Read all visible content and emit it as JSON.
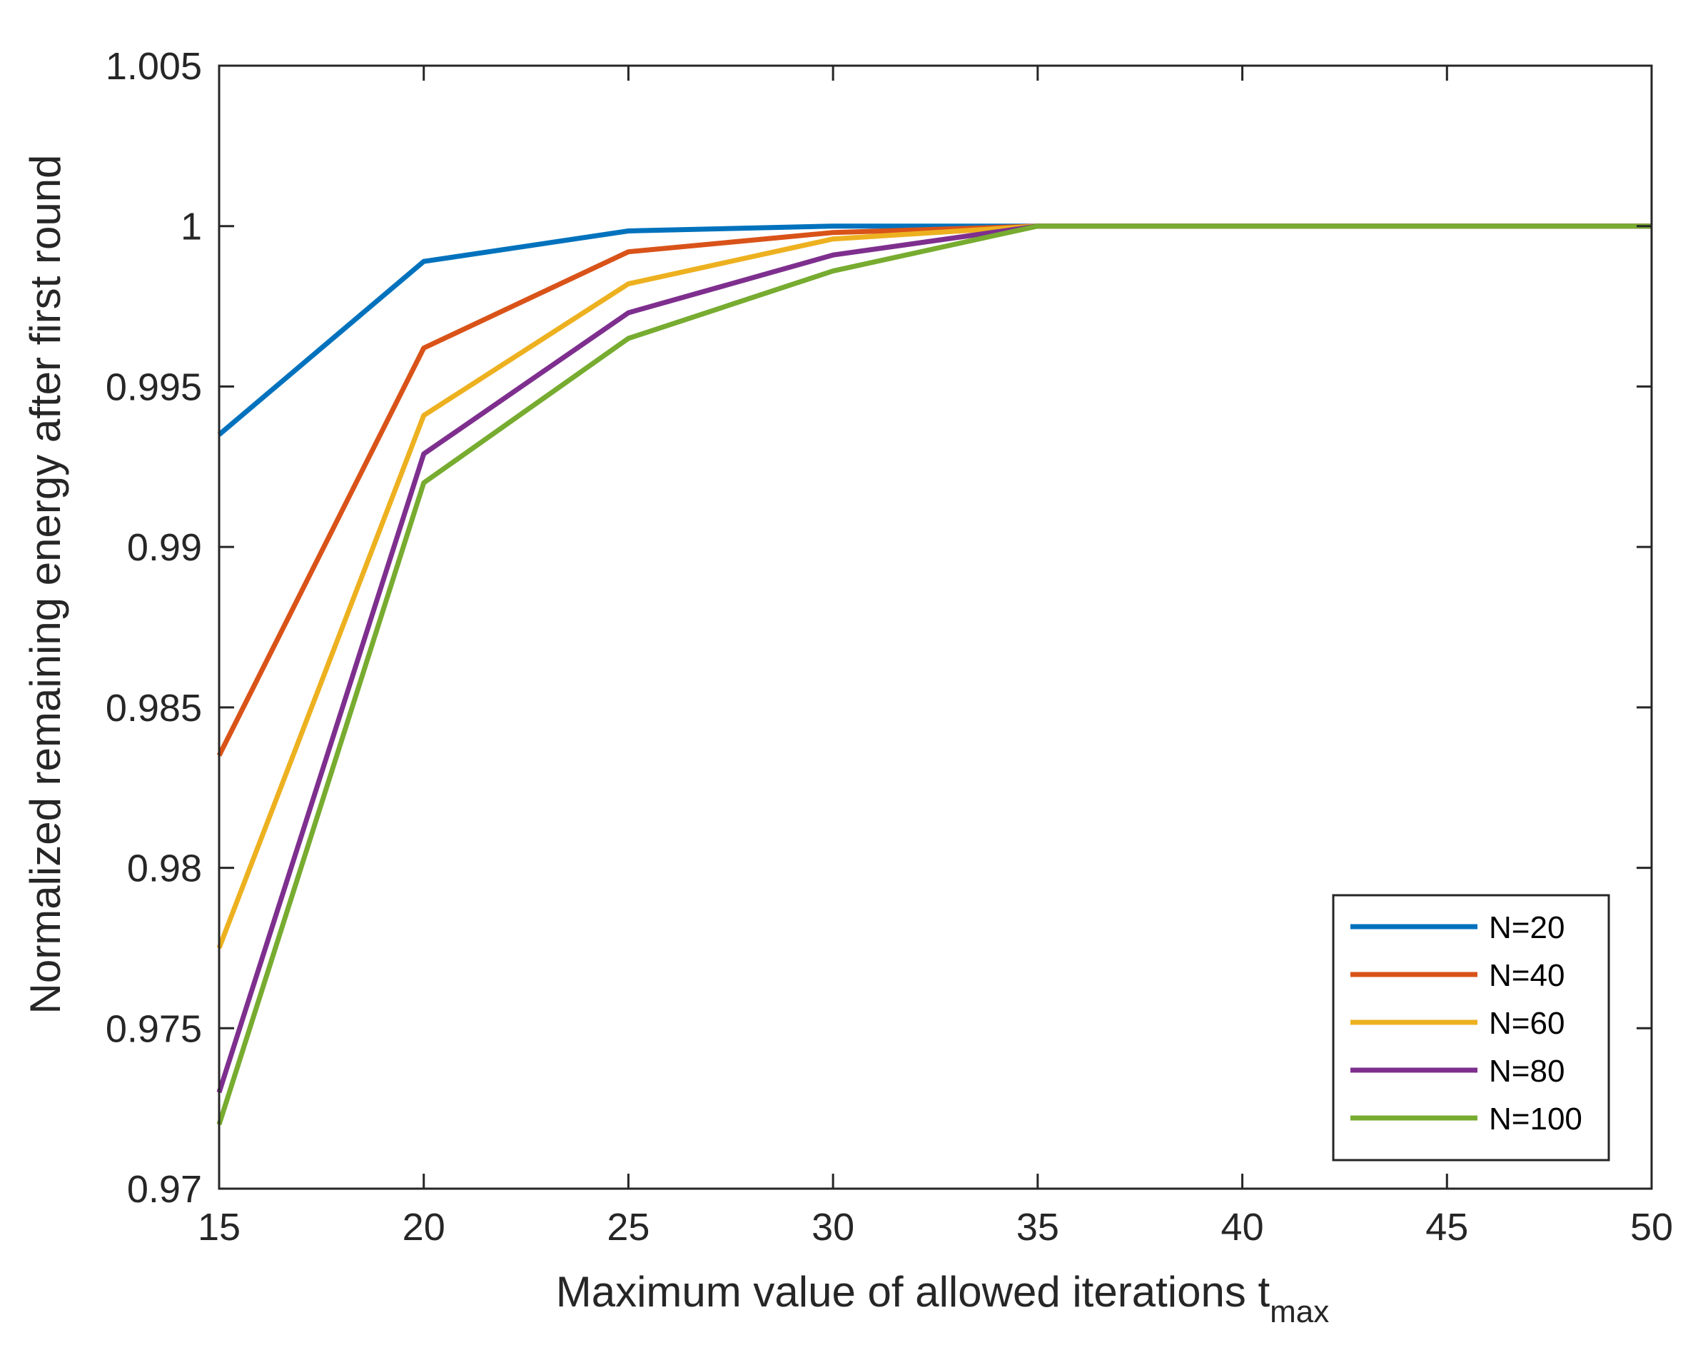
{
  "chart_data": {
    "type": "line",
    "title": "",
    "xlabel": "Maximum value of allowed iterations t",
    "xlabel_subscript": "max",
    "ylabel": "Normalized remaining energy after first round",
    "x": [
      15,
      20,
      25,
      30,
      35,
      40,
      45,
      50
    ],
    "xlim": [
      15,
      50
    ],
    "ylim": [
      0.97,
      1.005
    ],
    "xticks": [
      15,
      20,
      25,
      30,
      35,
      40,
      45,
      50
    ],
    "xtick_labels": [
      "15",
      "20",
      "25",
      "30",
      "35",
      "40",
      "45",
      "50"
    ],
    "yticks": [
      0.97,
      0.975,
      0.98,
      0.985,
      0.99,
      0.995,
      1.0,
      1.005
    ],
    "ytick_labels": [
      "0.97",
      "0.975",
      "0.98",
      "0.985",
      "0.99",
      "0.995",
      "1",
      "1.005"
    ],
    "grid": false,
    "legend_position": "bottom-right",
    "series": [
      {
        "name": "N=20",
        "color": "#0072BD",
        "values": [
          0.9935,
          0.9989,
          0.99985,
          1.0,
          1.0,
          1.0,
          1.0,
          1.0
        ]
      },
      {
        "name": "N=40",
        "color": "#D95319",
        "values": [
          0.9835,
          0.9962,
          0.9992,
          0.9998,
          1.0,
          1.0,
          1.0,
          1.0
        ]
      },
      {
        "name": "N=60",
        "color": "#EDB120",
        "values": [
          0.9775,
          0.9941,
          0.9982,
          0.9996,
          1.0,
          1.0,
          1.0,
          1.0
        ]
      },
      {
        "name": "N=80",
        "color": "#7E2F8E",
        "values": [
          0.973,
          0.9929,
          0.9973,
          0.9991,
          1.0,
          1.0,
          1.0,
          1.0
        ]
      },
      {
        "name": "N=100",
        "color": "#77AC30",
        "values": [
          0.972,
          0.992,
          0.9965,
          0.9986,
          1.0,
          1.0,
          1.0,
          1.0
        ]
      }
    ]
  }
}
